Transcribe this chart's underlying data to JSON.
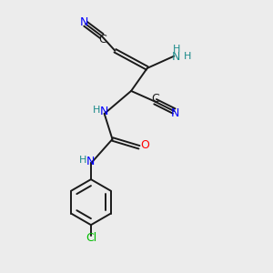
{
  "bg_color": "#ececec",
  "bond_color": "#1a1a1a",
  "N_color": "#0000ff",
  "O_color": "#ff0000",
  "Cl_color": "#00bb00",
  "C_color": "#1a1a1a",
  "NH_color": "#1a8a8a",
  "figsize": [
    3.0,
    3.0
  ],
  "dpi": 100,
  "xlim": [
    0,
    10
  ],
  "ylim": [
    0,
    10
  ]
}
